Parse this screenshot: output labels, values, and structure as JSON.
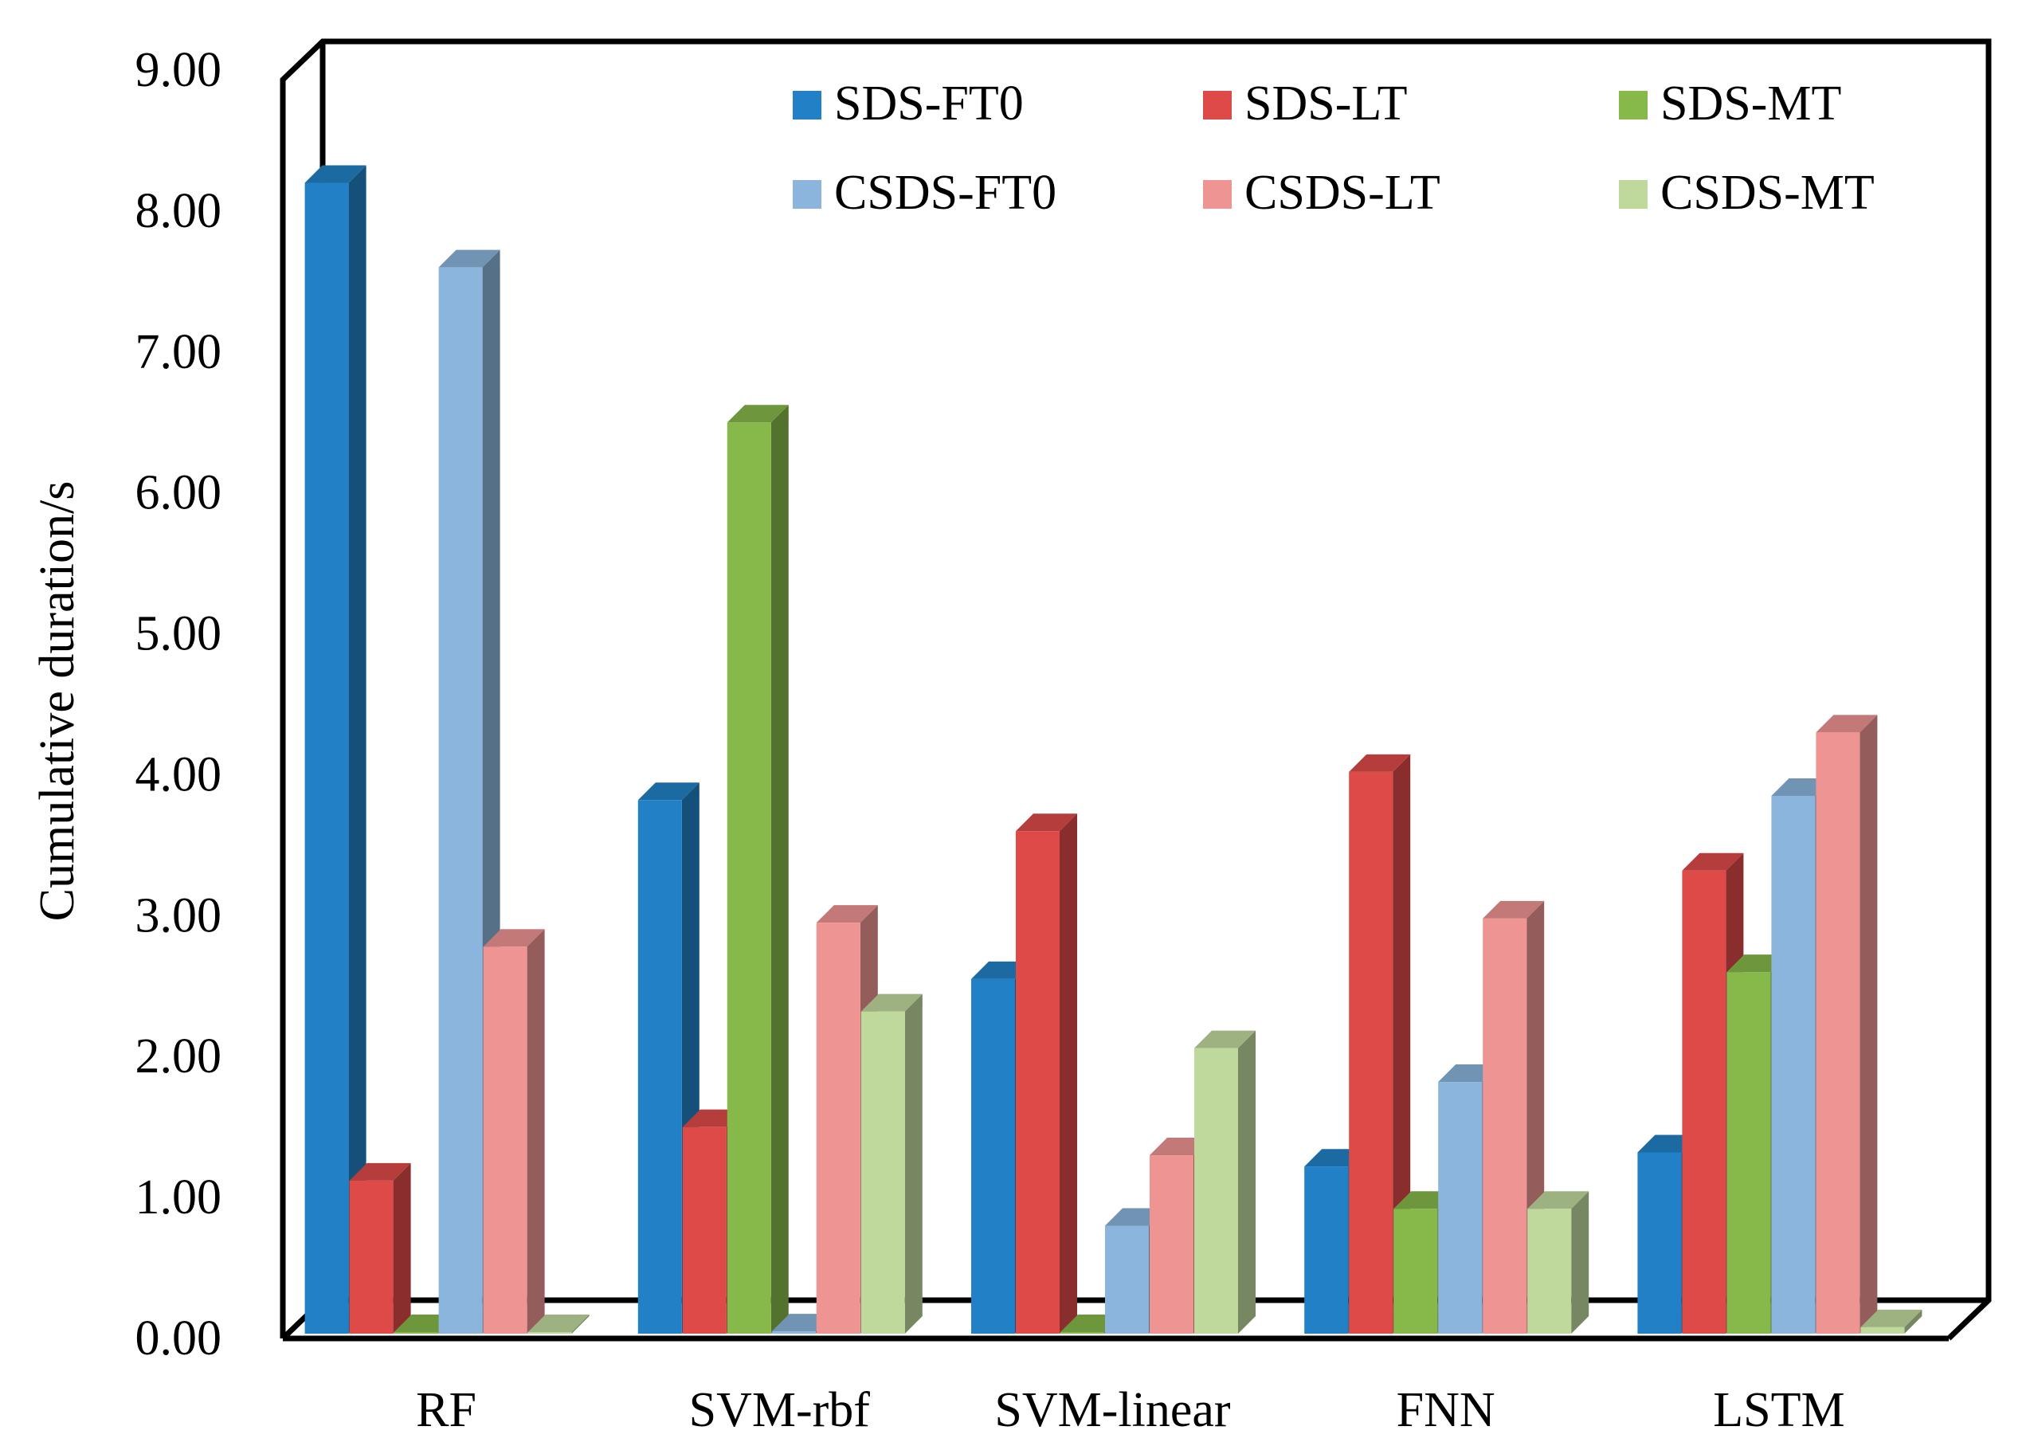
{
  "chart_data": {
    "type": "bar",
    "style": "3d-clustered-column",
    "title": "",
    "xlabel": "",
    "ylabel": "Cumulative duration/s",
    "ylim": [
      0,
      9
    ],
    "yticks": [
      "0.00",
      "1.00",
      "2.00",
      "3.00",
      "4.00",
      "5.00",
      "6.00",
      "7.00",
      "8.00",
      "9.00"
    ],
    "grid": false,
    "legend_position": "top-right",
    "categories": [
      "RF",
      "SVM-rbf",
      "SVM-linear",
      "FNN",
      "LSTM"
    ],
    "series": [
      {
        "name": "SDS-FT0",
        "color": "#2281c6",
        "values": [
          8.2,
          3.82,
          2.55,
          1.22,
          1.32
        ]
      },
      {
        "name": "SDS-LT",
        "color": "#dd4a48",
        "values": [
          1.12,
          1.5,
          3.6,
          4.02,
          3.32
        ]
      },
      {
        "name": "SDS-MT",
        "color": "#86b84a",
        "values": [
          0.0,
          6.5,
          0.0,
          0.92,
          2.6
        ]
      },
      {
        "name": "CSDS-FT0",
        "color": "#8bb5dc",
        "values": [
          7.6,
          0.05,
          0.8,
          1.82,
          3.85
        ]
      },
      {
        "name": "CSDS-LT",
        "color": "#ee9492",
        "values": [
          2.78,
          2.95,
          1.3,
          2.98,
          4.3
        ]
      },
      {
        "name": "CSDS-MT",
        "color": "#bfd99c",
        "values": [
          0.0,
          2.32,
          2.06,
          0.92,
          0.08
        ]
      }
    ]
  }
}
